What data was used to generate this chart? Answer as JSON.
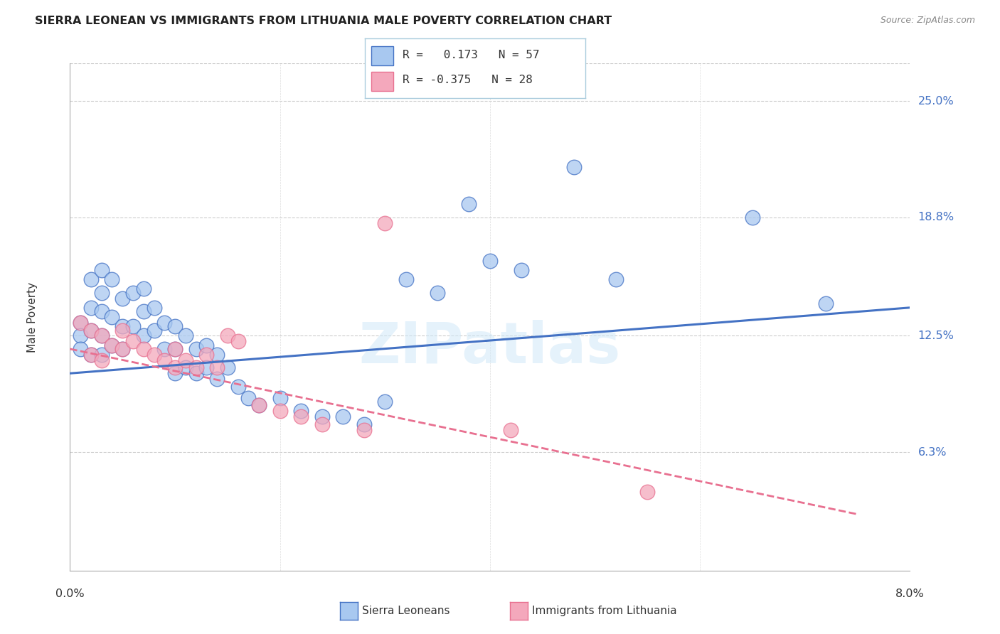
{
  "title": "SIERRA LEONEAN VS IMMIGRANTS FROM LITHUANIA MALE POVERTY CORRELATION CHART",
  "source": "Source: ZipAtlas.com",
  "ylabel": "Male Poverty",
  "ytick_labels": [
    "25.0%",
    "18.8%",
    "12.5%",
    "6.3%"
  ],
  "ytick_values": [
    0.25,
    0.188,
    0.125,
    0.063
  ],
  "xmin": 0.0,
  "xmax": 0.08,
  "ymin": 0.0,
  "ymax": 0.27,
  "color_blue": "#A8C8F0",
  "color_pink": "#F4A8BC",
  "line_blue": "#4472C4",
  "line_pink": "#E87090",
  "watermark": "ZIPatlas",
  "sierra_leoneans_x": [
    0.001,
    0.001,
    0.001,
    0.002,
    0.002,
    0.002,
    0.002,
    0.003,
    0.003,
    0.003,
    0.003,
    0.003,
    0.004,
    0.004,
    0.004,
    0.005,
    0.005,
    0.005,
    0.006,
    0.006,
    0.007,
    0.007,
    0.007,
    0.008,
    0.008,
    0.009,
    0.009,
    0.01,
    0.01,
    0.01,
    0.011,
    0.011,
    0.012,
    0.012,
    0.013,
    0.013,
    0.014,
    0.014,
    0.015,
    0.016,
    0.017,
    0.018,
    0.02,
    0.022,
    0.024,
    0.026,
    0.028,
    0.03,
    0.032,
    0.035,
    0.038,
    0.04,
    0.043,
    0.048,
    0.052,
    0.065,
    0.072
  ],
  "sierra_leoneans_y": [
    0.132,
    0.125,
    0.118,
    0.155,
    0.14,
    0.128,
    0.115,
    0.16,
    0.148,
    0.138,
    0.125,
    0.115,
    0.155,
    0.135,
    0.12,
    0.145,
    0.13,
    0.118,
    0.148,
    0.13,
    0.15,
    0.138,
    0.125,
    0.14,
    0.128,
    0.132,
    0.118,
    0.13,
    0.118,
    0.105,
    0.125,
    0.108,
    0.118,
    0.105,
    0.12,
    0.108,
    0.115,
    0.102,
    0.108,
    0.098,
    0.092,
    0.088,
    0.092,
    0.085,
    0.082,
    0.082,
    0.078,
    0.09,
    0.155,
    0.148,
    0.195,
    0.165,
    0.16,
    0.215,
    0.155,
    0.188,
    0.142
  ],
  "immigrants_x": [
    0.001,
    0.002,
    0.002,
    0.003,
    0.003,
    0.004,
    0.005,
    0.005,
    0.006,
    0.007,
    0.008,
    0.009,
    0.01,
    0.01,
    0.011,
    0.012,
    0.013,
    0.014,
    0.015,
    0.016,
    0.018,
    0.02,
    0.022,
    0.024,
    0.028,
    0.03,
    0.042,
    0.055
  ],
  "immigrants_y": [
    0.132,
    0.128,
    0.115,
    0.125,
    0.112,
    0.12,
    0.128,
    0.118,
    0.122,
    0.118,
    0.115,
    0.112,
    0.118,
    0.108,
    0.112,
    0.108,
    0.115,
    0.108,
    0.125,
    0.122,
    0.088,
    0.085,
    0.082,
    0.078,
    0.075,
    0.185,
    0.075,
    0.042
  ],
  "blue_line_x": [
    0.0,
    0.08
  ],
  "blue_line_y": [
    0.105,
    0.14
  ],
  "pink_line_x": [
    0.0,
    0.075
  ],
  "pink_line_y": [
    0.118,
    0.03
  ]
}
